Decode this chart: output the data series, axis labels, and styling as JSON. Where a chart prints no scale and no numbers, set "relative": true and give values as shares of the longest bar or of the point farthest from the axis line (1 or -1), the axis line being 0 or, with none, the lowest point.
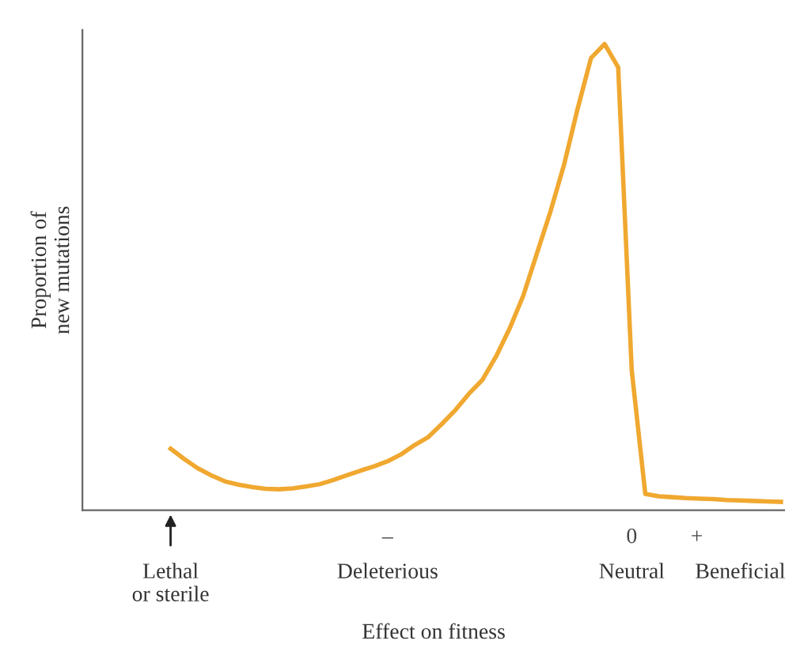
{
  "chart_data": {
    "type": "line",
    "relative": true,
    "xlabel": "Effect on fitness",
    "ylabel": "Proportion of\nnew mutations",
    "categories": [
      "Lethal\nor sterile",
      null,
      null,
      null,
      null,
      null,
      null,
      null,
      null,
      null,
      null,
      null,
      null,
      null,
      null,
      null,
      "Deleterious",
      null,
      null,
      null,
      null,
      null,
      null,
      null,
      null,
      null,
      null,
      null,
      null,
      null,
      null,
      null,
      null,
      null,
      "Neutral",
      null,
      null,
      null,
      null,
      null,
      null,
      null,
      "Beneficial",
      null,
      null,
      null
    ],
    "annotations": [
      "–",
      "0",
      "+"
    ],
    "grid": false,
    "marker": "none",
    "line_style": "solid",
    "series": [
      {
        "color": "#f0a830",
        "values": [
          0.132,
          0.11,
          0.09,
          0.075,
          0.062,
          0.055,
          0.05,
          0.046,
          0.045,
          0.047,
          0.051,
          0.056,
          0.065,
          0.075,
          0.085,
          0.094,
          0.105,
          0.12,
          0.14,
          0.157,
          0.185,
          0.215,
          0.25,
          0.28,
          0.33,
          0.39,
          0.46,
          0.55,
          0.64,
          0.74,
          0.86,
          0.97,
          1,
          0.95,
          0.3,
          0.035,
          0.03,
          0.028,
          0.026,
          0.025,
          0.024,
          0.022,
          0.021,
          0.02,
          0.019,
          0.018
        ]
      }
    ]
  }
}
